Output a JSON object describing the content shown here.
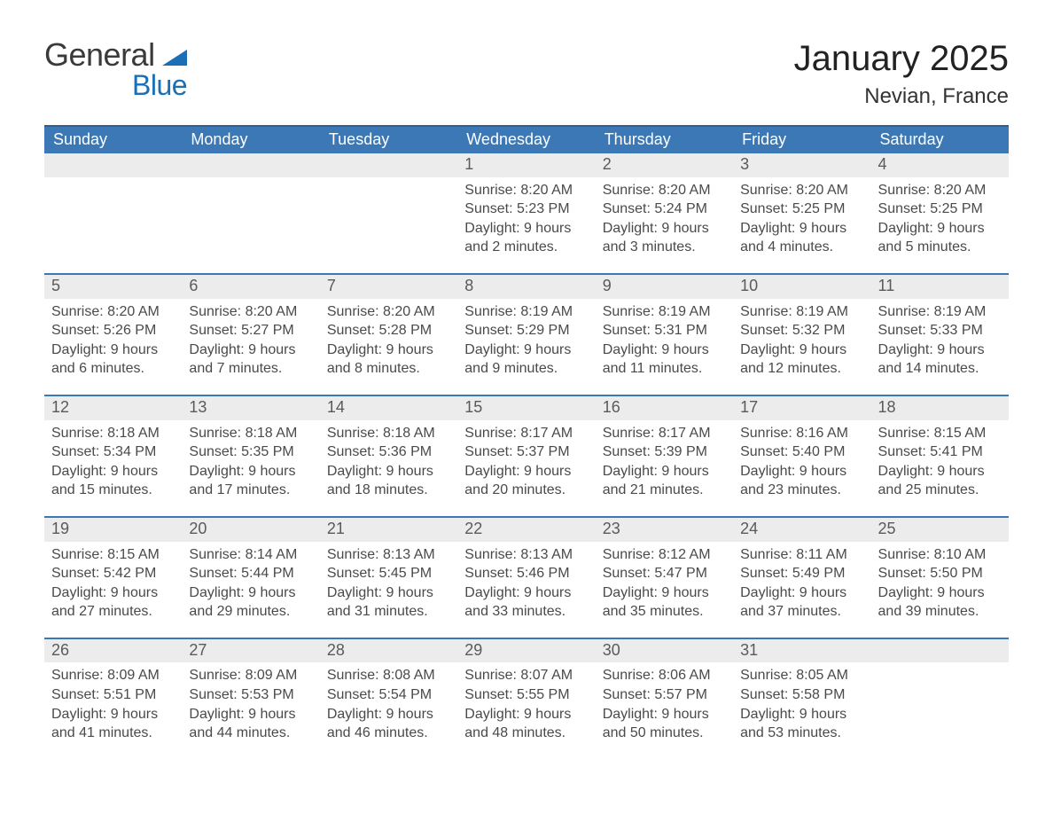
{
  "colors": {
    "page_bg": "#ffffff",
    "text": "#333333",
    "text_muted": "#4a4a4a",
    "header_blue": "#3b78b5",
    "header_blue_border": "#2d5f94",
    "daynum_bg": "#ececec",
    "row_divider": "#3b78b5",
    "logo_dark": "#3a3a3a",
    "logo_blue": "#1b6fb5"
  },
  "typography": {
    "title_fontsize_pt": 30,
    "location_fontsize_pt": 18,
    "weekday_fontsize_pt": 13,
    "daynum_fontsize_pt": 13,
    "body_fontsize_pt": 12,
    "logo_fontsize_pt": 27,
    "font_family": "Arial"
  },
  "logo": {
    "part1": "General",
    "part2": "Blue",
    "triangle_color": "#1b6fb5"
  },
  "title": "January 2025",
  "location": "Nevian, France",
  "weekdays": [
    "Sunday",
    "Monday",
    "Tuesday",
    "Wednesday",
    "Thursday",
    "Friday",
    "Saturday"
  ],
  "labels": {
    "sunrise": "Sunrise",
    "sunset": "Sunset",
    "daylight": "Daylight"
  },
  "calendar": {
    "type": "table",
    "columns": 7,
    "rows": 5,
    "start_day_index": 3,
    "days": [
      {
        "n": 1,
        "sunrise": "8:20 AM",
        "sunset": "5:23 PM",
        "daylight": "9 hours and 2 minutes."
      },
      {
        "n": 2,
        "sunrise": "8:20 AM",
        "sunset": "5:24 PM",
        "daylight": "9 hours and 3 minutes."
      },
      {
        "n": 3,
        "sunrise": "8:20 AM",
        "sunset": "5:25 PM",
        "daylight": "9 hours and 4 minutes."
      },
      {
        "n": 4,
        "sunrise": "8:20 AM",
        "sunset": "5:25 PM",
        "daylight": "9 hours and 5 minutes."
      },
      {
        "n": 5,
        "sunrise": "8:20 AM",
        "sunset": "5:26 PM",
        "daylight": "9 hours and 6 minutes."
      },
      {
        "n": 6,
        "sunrise": "8:20 AM",
        "sunset": "5:27 PM",
        "daylight": "9 hours and 7 minutes."
      },
      {
        "n": 7,
        "sunrise": "8:20 AM",
        "sunset": "5:28 PM",
        "daylight": "9 hours and 8 minutes."
      },
      {
        "n": 8,
        "sunrise": "8:19 AM",
        "sunset": "5:29 PM",
        "daylight": "9 hours and 9 minutes."
      },
      {
        "n": 9,
        "sunrise": "8:19 AM",
        "sunset": "5:31 PM",
        "daylight": "9 hours and 11 minutes."
      },
      {
        "n": 10,
        "sunrise": "8:19 AM",
        "sunset": "5:32 PM",
        "daylight": "9 hours and 12 minutes."
      },
      {
        "n": 11,
        "sunrise": "8:19 AM",
        "sunset": "5:33 PM",
        "daylight": "9 hours and 14 minutes."
      },
      {
        "n": 12,
        "sunrise": "8:18 AM",
        "sunset": "5:34 PM",
        "daylight": "9 hours and 15 minutes."
      },
      {
        "n": 13,
        "sunrise": "8:18 AM",
        "sunset": "5:35 PM",
        "daylight": "9 hours and 17 minutes."
      },
      {
        "n": 14,
        "sunrise": "8:18 AM",
        "sunset": "5:36 PM",
        "daylight": "9 hours and 18 minutes."
      },
      {
        "n": 15,
        "sunrise": "8:17 AM",
        "sunset": "5:37 PM",
        "daylight": "9 hours and 20 minutes."
      },
      {
        "n": 16,
        "sunrise": "8:17 AM",
        "sunset": "5:39 PM",
        "daylight": "9 hours and 21 minutes."
      },
      {
        "n": 17,
        "sunrise": "8:16 AM",
        "sunset": "5:40 PM",
        "daylight": "9 hours and 23 minutes."
      },
      {
        "n": 18,
        "sunrise": "8:15 AM",
        "sunset": "5:41 PM",
        "daylight": "9 hours and 25 minutes."
      },
      {
        "n": 19,
        "sunrise": "8:15 AM",
        "sunset": "5:42 PM",
        "daylight": "9 hours and 27 minutes."
      },
      {
        "n": 20,
        "sunrise": "8:14 AM",
        "sunset": "5:44 PM",
        "daylight": "9 hours and 29 minutes."
      },
      {
        "n": 21,
        "sunrise": "8:13 AM",
        "sunset": "5:45 PM",
        "daylight": "9 hours and 31 minutes."
      },
      {
        "n": 22,
        "sunrise": "8:13 AM",
        "sunset": "5:46 PM",
        "daylight": "9 hours and 33 minutes."
      },
      {
        "n": 23,
        "sunrise": "8:12 AM",
        "sunset": "5:47 PM",
        "daylight": "9 hours and 35 minutes."
      },
      {
        "n": 24,
        "sunrise": "8:11 AM",
        "sunset": "5:49 PM",
        "daylight": "9 hours and 37 minutes."
      },
      {
        "n": 25,
        "sunrise": "8:10 AM",
        "sunset": "5:50 PM",
        "daylight": "9 hours and 39 minutes."
      },
      {
        "n": 26,
        "sunrise": "8:09 AM",
        "sunset": "5:51 PM",
        "daylight": "9 hours and 41 minutes."
      },
      {
        "n": 27,
        "sunrise": "8:09 AM",
        "sunset": "5:53 PM",
        "daylight": "9 hours and 44 minutes."
      },
      {
        "n": 28,
        "sunrise": "8:08 AM",
        "sunset": "5:54 PM",
        "daylight": "9 hours and 46 minutes."
      },
      {
        "n": 29,
        "sunrise": "8:07 AM",
        "sunset": "5:55 PM",
        "daylight": "9 hours and 48 minutes."
      },
      {
        "n": 30,
        "sunrise": "8:06 AM",
        "sunset": "5:57 PM",
        "daylight": "9 hours and 50 minutes."
      },
      {
        "n": 31,
        "sunrise": "8:05 AM",
        "sunset": "5:58 PM",
        "daylight": "9 hours and 53 minutes."
      }
    ]
  }
}
